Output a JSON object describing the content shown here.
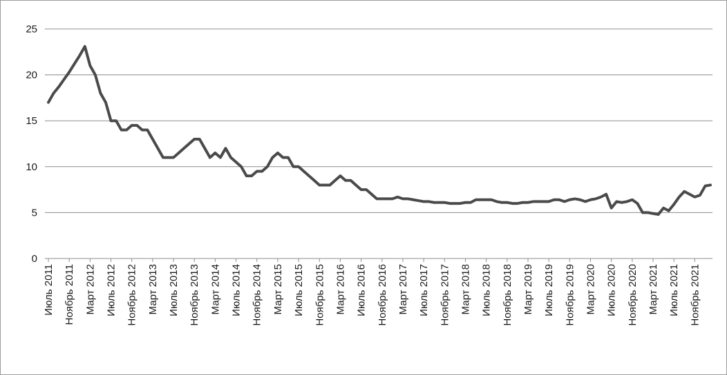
{
  "chart_data": {
    "type": "line",
    "title": "",
    "xlabel": "",
    "ylabel": "",
    "ylim": [
      0,
      25
    ],
    "y_ticks": [
      "0",
      "5",
      "10",
      "15",
      "20",
      "25"
    ],
    "grid": true,
    "legend": "none",
    "x_tick_labels": [
      "Июль 2011",
      "Ноябрь 2011",
      "Март 2012",
      "Июль 2012",
      "Ноябрь 2012",
      "Март 2013",
      "Июль 2013",
      "Ноябрь 2013",
      "Март 2014",
      "Июль 2014",
      "Ноябрь 2014",
      "Март 2015",
      "Июль 2015",
      "Ноябрь 2015",
      "Март 2016",
      "Июль 2016",
      "Ноябрь 2016",
      "Март 2017",
      "Июль 2017",
      "Ноябрь 2017",
      "Март 2018",
      "Июль 2018",
      "Ноябрь 2018",
      "Март 2019",
      "Июль 2019",
      "Ноябрь 2019",
      "Март 2020",
      "Июль 2020",
      "Ноябрь 2020",
      "Март 2021",
      "Июль 2021",
      "Ноябрь 2021"
    ],
    "series": [
      {
        "color": "#4a4a4a",
        "values": [
          17,
          18,
          18.7,
          19.5,
          20.3,
          21.2,
          22.1,
          23.1,
          21,
          20,
          18,
          17,
          15,
          15,
          14,
          14,
          14.5,
          14.5,
          14,
          14,
          13,
          12,
          11,
          11,
          11,
          11.5,
          12,
          12.5,
          13,
          13,
          12,
          11,
          11.5,
          11,
          12,
          11,
          10.5,
          10,
          9,
          9,
          9.5,
          9.5,
          10,
          11,
          11.5,
          11,
          11,
          10,
          10,
          9.5,
          9,
          8.5,
          8,
          8,
          8,
          8.5,
          9,
          8.5,
          8.5,
          8,
          7.5,
          7.5,
          7,
          6.5,
          6.5,
          6.5,
          6.5,
          6.7,
          6.5,
          6.5,
          6.4,
          6.3,
          6.2,
          6.2,
          6.1,
          6.1,
          6.1,
          6,
          6,
          6,
          6.1,
          6.1,
          6.4,
          6.4,
          6.4,
          6.4,
          6.2,
          6.1,
          6.1,
          6,
          6,
          6.1,
          6.1,
          6.2,
          6.2,
          6.2,
          6.2,
          6.4,
          6.4,
          6.2,
          6.4,
          6.5,
          6.4,
          6.2,
          6.4,
          6.5,
          6.7,
          7,
          5.5,
          6.2,
          6.1,
          6.2,
          6.4,
          6,
          5,
          5,
          4.9,
          4.8,
          5.5,
          5.2,
          5.9,
          6.7,
          7.3,
          7,
          6.7,
          6.9,
          7.9,
          8
        ]
      }
    ]
  }
}
